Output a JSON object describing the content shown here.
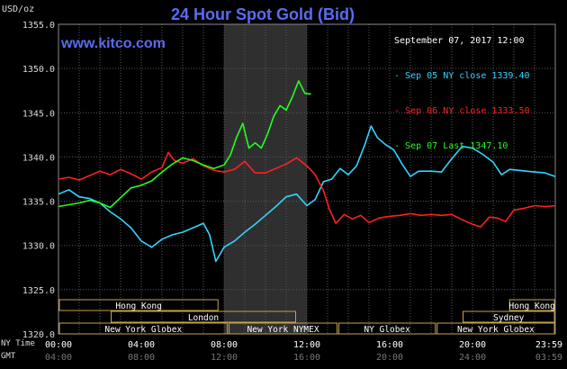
{
  "header": {
    "title": "24 Hour Spot Gold (Bid)",
    "site": "www.kitco.com",
    "y_unit": "USD/oz",
    "date": "September 07, 2017 12:00"
  },
  "legend": [
    {
      "label": "Sep 05 NY close 1339.40",
      "color": "#33d4ff"
    },
    {
      "label": "Sep 06 NY close 1333.50",
      "color": "#ff2020"
    },
    {
      "label": "Sep 07 Last 1347.10",
      "color": "#22ff22"
    }
  ],
  "timezone_labels": {
    "ny": "NY Time",
    "gmt": "GMT"
  },
  "sessions": {
    "row1": [
      {
        "label": "Hong Kong",
        "from": 0,
        "to": 7.75
      },
      {
        "label": "Hong Kong",
        "from": 21.75,
        "to": 24
      }
    ],
    "row2": [
      {
        "label": "London",
        "from": 2.5,
        "to": 11.5
      },
      {
        "label": "Sydney",
        "from": 19.5,
        "to": 24
      }
    ],
    "row3": [
      {
        "label": "New York Globex",
        "from": 0,
        "to": 8.2
      },
      {
        "label": "New York NYMEX",
        "from": 8.2,
        "to": 13.5
      },
      {
        "label": "NY Globex",
        "from": 13.5,
        "to": 18.25
      },
      {
        "label": "New York Globex",
        "from": 18.25,
        "to": 24
      }
    ]
  },
  "chart_data": {
    "type": "line",
    "title": "24 Hour Spot Gold (Bid)",
    "ylabel": "USD/oz",
    "xlabel": "",
    "ylim": [
      1320,
      1355
    ],
    "xlim": [
      0,
      24
    ],
    "yticks": [
      "1355.0",
      "1350.0",
      "1345.0",
      "1340.0",
      "1335.0",
      "1330.0",
      "1325.0",
      "1320.0"
    ],
    "ytick_values": [
      1355,
      1350,
      1345,
      1340,
      1335,
      1330,
      1325,
      1320
    ],
    "xticks_ny": [
      "00:00",
      "04:00",
      "08:00",
      "12:00",
      "16:00",
      "20:00",
      "23:59"
    ],
    "xticks_gmt": [
      "04:00",
      "08:00",
      "12:00",
      "16:00",
      "20:00",
      "24:00",
      "03:59"
    ],
    "xtick_values": [
      0,
      4,
      8,
      12,
      16,
      20,
      24
    ],
    "highlight_range": [
      8,
      12
    ],
    "grid": true,
    "legend_position": "top-right",
    "series": [
      {
        "name": "Sep 05 NY close 1339.40",
        "color": "#33d4ff",
        "points": [
          [
            0,
            1335.8
          ],
          [
            0.5,
            1336.3
          ],
          [
            1,
            1335.5
          ],
          [
            1.5,
            1335.3
          ],
          [
            2,
            1334.8
          ],
          [
            2.5,
            1333.8
          ],
          [
            3,
            1333.0
          ],
          [
            3.5,
            1332.0
          ],
          [
            4,
            1330.5
          ],
          [
            4.5,
            1329.8
          ],
          [
            5,
            1330.7
          ],
          [
            5.5,
            1331.2
          ],
          [
            6,
            1331.5
          ],
          [
            6.5,
            1332.0
          ],
          [
            7,
            1332.5
          ],
          [
            7.3,
            1331.2
          ],
          [
            7.6,
            1328.2
          ],
          [
            8,
            1329.8
          ],
          [
            8.5,
            1330.5
          ],
          [
            9,
            1331.5
          ],
          [
            9.5,
            1332.4
          ],
          [
            10,
            1333.4
          ],
          [
            10.5,
            1334.4
          ],
          [
            11,
            1335.5
          ],
          [
            11.5,
            1335.8
          ],
          [
            12,
            1334.5
          ],
          [
            12.4,
            1335.2
          ],
          [
            12.8,
            1337.2
          ],
          [
            13.2,
            1337.5
          ],
          [
            13.6,
            1338.7
          ],
          [
            14,
            1338.0
          ],
          [
            14.4,
            1339.0
          ],
          [
            14.8,
            1341.4
          ],
          [
            15.1,
            1343.5
          ],
          [
            15.4,
            1342.2
          ],
          [
            15.8,
            1341.4
          ],
          [
            16.2,
            1340.8
          ],
          [
            16.6,
            1339.2
          ],
          [
            17,
            1337.8
          ],
          [
            17.4,
            1338.4
          ],
          [
            18,
            1338.4
          ],
          [
            18.5,
            1338.3
          ],
          [
            19,
            1339.8
          ],
          [
            19.5,
            1341.2
          ],
          [
            20,
            1341.0
          ],
          [
            20.5,
            1340.3
          ],
          [
            21,
            1339.4
          ],
          [
            21.4,
            1338.0
          ],
          [
            21.8,
            1338.6
          ],
          [
            22.2,
            1338.5
          ],
          [
            22.6,
            1338.4
          ],
          [
            23,
            1338.3
          ],
          [
            23.5,
            1338.2
          ],
          [
            24,
            1337.8
          ]
        ]
      },
      {
        "name": "Sep 06 NY close 1333.50",
        "color": "#ff2020",
        "points": [
          [
            0,
            1337.5
          ],
          [
            0.5,
            1337.7
          ],
          [
            1,
            1337.4
          ],
          [
            1.5,
            1337.9
          ],
          [
            2,
            1338.4
          ],
          [
            2.5,
            1338.0
          ],
          [
            3,
            1338.6
          ],
          [
            3.5,
            1338.1
          ],
          [
            4,
            1337.5
          ],
          [
            4.5,
            1338.3
          ],
          [
            5,
            1338.8
          ],
          [
            5.3,
            1340.5
          ],
          [
            5.6,
            1339.6
          ],
          [
            6,
            1339.3
          ],
          [
            6.5,
            1339.8
          ],
          [
            7,
            1339.0
          ],
          [
            7.5,
            1338.5
          ],
          [
            8,
            1338.3
          ],
          [
            8.5,
            1338.6
          ],
          [
            9,
            1339.5
          ],
          [
            9.5,
            1338.2
          ],
          [
            10,
            1338.2
          ],
          [
            10.5,
            1338.7
          ],
          [
            11,
            1339.2
          ],
          [
            11.5,
            1339.9
          ],
          [
            12,
            1339.0
          ],
          [
            12.4,
            1338.0
          ],
          [
            12.8,
            1336.2
          ],
          [
            13.1,
            1334.0
          ],
          [
            13.4,
            1332.5
          ],
          [
            13.8,
            1333.5
          ],
          [
            14.2,
            1333.0
          ],
          [
            14.6,
            1333.4
          ],
          [
            15,
            1332.6
          ],
          [
            15.5,
            1333.1
          ],
          [
            16,
            1333.3
          ],
          [
            16.5,
            1333.4
          ],
          [
            17,
            1333.6
          ],
          [
            17.5,
            1333.4
          ],
          [
            18,
            1333.5
          ],
          [
            18.5,
            1333.4
          ],
          [
            19,
            1333.5
          ],
          [
            19.5,
            1332.9
          ],
          [
            20,
            1332.4
          ],
          [
            20.4,
            1332.1
          ],
          [
            20.8,
            1333.2
          ],
          [
            21.2,
            1333.1
          ],
          [
            21.6,
            1332.7
          ],
          [
            22,
            1334.0
          ],
          [
            22.5,
            1334.2
          ],
          [
            23,
            1334.5
          ],
          [
            23.5,
            1334.4
          ],
          [
            24,
            1334.5
          ]
        ]
      },
      {
        "name": "Sep 07 Last 1347.10",
        "color": "#22ff22",
        "points": [
          [
            0,
            1334.4
          ],
          [
            0.5,
            1334.6
          ],
          [
            1,
            1334.8
          ],
          [
            1.5,
            1335.1
          ],
          [
            2,
            1334.8
          ],
          [
            2.5,
            1334.3
          ],
          [
            3,
            1335.4
          ],
          [
            3.5,
            1336.5
          ],
          [
            4,
            1336.8
          ],
          [
            4.5,
            1337.3
          ],
          [
            5,
            1338.3
          ],
          [
            5.5,
            1339.2
          ],
          [
            6,
            1339.9
          ],
          [
            6.5,
            1339.6
          ],
          [
            7,
            1339.1
          ],
          [
            7.5,
            1338.7
          ],
          [
            8,
            1339.1
          ],
          [
            8.3,
            1340.2
          ],
          [
            8.6,
            1342.2
          ],
          [
            8.9,
            1343.8
          ],
          [
            9.2,
            1341.0
          ],
          [
            9.5,
            1341.6
          ],
          [
            9.8,
            1341.0
          ],
          [
            10.1,
            1342.6
          ],
          [
            10.4,
            1344.6
          ],
          [
            10.7,
            1345.8
          ],
          [
            11,
            1345.3
          ],
          [
            11.3,
            1346.8
          ],
          [
            11.6,
            1348.6
          ],
          [
            11.9,
            1347.2
          ],
          [
            12.2,
            1347.1
          ]
        ]
      }
    ]
  }
}
